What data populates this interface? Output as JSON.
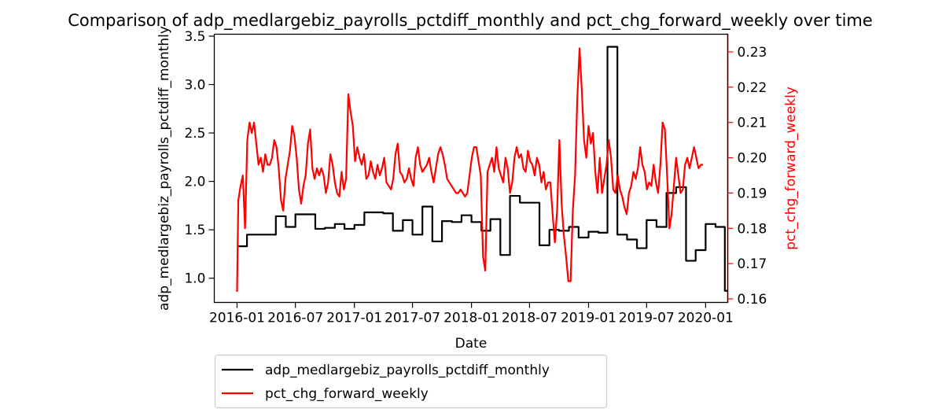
{
  "chart_data": {
    "type": "line",
    "title": "Comparison of adp_medlargebiz_payrolls_pctdiff_monthly and pct_chg_forward_weekly over time",
    "xlabel": "Date",
    "ylabel_left": "adp_medlargebiz_payrolls_pctdiff_monthly",
    "ylabel_right": "pct_chg_forward_weekly",
    "x_ticks": [
      "2016-01",
      "2016-07",
      "2017-01",
      "2017-07",
      "2018-01",
      "2018-07",
      "2019-01",
      "2019-07",
      "2020-01"
    ],
    "y_left_ticks": [
      "1.0",
      "1.5",
      "2.0",
      "2.5",
      "3.0",
      "3.5"
    ],
    "y_right_ticks": [
      "0.16",
      "0.17",
      "0.18",
      "0.19",
      "0.20",
      "0.21",
      "0.22",
      "0.23"
    ],
    "y_left_lim": [
      0.75,
      3.52
    ],
    "y_right_lim": [
      0.159,
      0.235
    ],
    "x_lim": [
      "2015-10-22",
      "2020-03-10"
    ],
    "grid": false,
    "legend_position": "below plot, left",
    "series": [
      {
        "name": "adp_medlargebiz_payrolls_pctdiff_monthly",
        "axis": "left",
        "color": "#000000",
        "step": true,
        "points": [
          [
            "2016-01-01",
            1.33
          ],
          [
            "2016-02-01",
            1.45
          ],
          [
            "2016-03-01",
            1.45
          ],
          [
            "2016-04-01",
            1.45
          ],
          [
            "2016-05-01",
            1.64
          ],
          [
            "2016-06-01",
            1.53
          ],
          [
            "2016-07-01",
            1.66
          ],
          [
            "2016-08-01",
            1.66
          ],
          [
            "2016-09-01",
            1.51
          ],
          [
            "2016-10-01",
            1.52
          ],
          [
            "2016-11-01",
            1.56
          ],
          [
            "2016-12-01",
            1.51
          ],
          [
            "2017-01-01",
            1.55
          ],
          [
            "2017-02-01",
            1.68
          ],
          [
            "2017-03-01",
            1.68
          ],
          [
            "2017-04-01",
            1.67
          ],
          [
            "2017-05-01",
            1.49
          ],
          [
            "2017-06-01",
            1.6
          ],
          [
            "2017-07-01",
            1.45
          ],
          [
            "2017-08-01",
            1.74
          ],
          [
            "2017-09-01",
            1.38
          ],
          [
            "2017-10-01",
            1.59
          ],
          [
            "2017-11-01",
            1.58
          ],
          [
            "2017-12-01",
            1.65
          ],
          [
            "2018-01-01",
            1.58
          ],
          [
            "2018-02-01",
            1.49
          ],
          [
            "2018-03-01",
            1.61
          ],
          [
            "2018-04-01",
            1.24
          ],
          [
            "2018-05-01",
            1.85
          ],
          [
            "2018-06-01",
            1.78
          ],
          [
            "2018-07-01",
            1.78
          ],
          [
            "2018-08-01",
            1.34
          ],
          [
            "2018-09-01",
            1.5
          ],
          [
            "2018-10-01",
            1.49
          ],
          [
            "2018-11-01",
            1.53
          ],
          [
            "2018-12-01",
            1.42
          ],
          [
            "2019-01-01",
            1.48
          ],
          [
            "2019-02-01",
            1.47
          ],
          [
            "2019-03-01",
            3.39
          ],
          [
            "2019-04-01",
            1.45
          ],
          [
            "2019-05-01",
            1.4
          ],
          [
            "2019-06-01",
            1.31
          ],
          [
            "2019-07-01",
            1.6
          ],
          [
            "2019-08-01",
            1.53
          ],
          [
            "2019-09-01",
            1.88
          ],
          [
            "2019-10-01",
            1.94
          ],
          [
            "2019-11-01",
            1.18
          ],
          [
            "2019-12-01",
            1.29
          ],
          [
            "2020-01-01",
            1.56
          ],
          [
            "2020-02-01",
            1.53
          ],
          [
            "2020-03-01",
            0.87
          ],
          [
            "2020-03-10",
            0.87
          ]
        ]
      },
      {
        "name": "pct_chg_forward_weekly",
        "axis": "right",
        "color": "#ff0000",
        "step": false,
        "points": [
          [
            "2016-01-01",
            0.162
          ],
          [
            "2016-01-05",
            0.188
          ],
          [
            "2016-01-12",
            0.192
          ],
          [
            "2016-01-19",
            0.195
          ],
          [
            "2016-01-26",
            0.18
          ],
          [
            "2016-02-02",
            0.205
          ],
          [
            "2016-02-09",
            0.21
          ],
          [
            "2016-02-16",
            0.207
          ],
          [
            "2016-02-23",
            0.21
          ],
          [
            "2016-03-01",
            0.204
          ],
          [
            "2016-03-08",
            0.198
          ],
          [
            "2016-03-15",
            0.2
          ],
          [
            "2016-03-22",
            0.196
          ],
          [
            "2016-03-29",
            0.201
          ],
          [
            "2016-04-05",
            0.198
          ],
          [
            "2016-04-12",
            0.198
          ],
          [
            "2016-04-19",
            0.2
          ],
          [
            "2016-04-26",
            0.205
          ],
          [
            "2016-05-03",
            0.203
          ],
          [
            "2016-05-10",
            0.197
          ],
          [
            "2016-05-17",
            0.188
          ],
          [
            "2016-05-24",
            0.185
          ],
          [
            "2016-05-31",
            0.194
          ],
          [
            "2016-06-07",
            0.198
          ],
          [
            "2016-06-14",
            0.202
          ],
          [
            "2016-06-21",
            0.209
          ],
          [
            "2016-06-28",
            0.206
          ],
          [
            "2016-07-05",
            0.2
          ],
          [
            "2016-07-12",
            0.191
          ],
          [
            "2016-07-19",
            0.187
          ],
          [
            "2016-07-26",
            0.192
          ],
          [
            "2016-08-02",
            0.195
          ],
          [
            "2016-08-09",
            0.204
          ],
          [
            "2016-08-16",
            0.208
          ],
          [
            "2016-08-23",
            0.197
          ],
          [
            "2016-08-30",
            0.194
          ],
          [
            "2016-09-06",
            0.197
          ],
          [
            "2016-09-13",
            0.195
          ],
          [
            "2016-09-20",
            0.197
          ],
          [
            "2016-09-27",
            0.195
          ],
          [
            "2016-10-04",
            0.19
          ],
          [
            "2016-10-11",
            0.193
          ],
          [
            "2016-10-18",
            0.201
          ],
          [
            "2016-10-25",
            0.198
          ],
          [
            "2016-11-01",
            0.193
          ],
          [
            "2016-11-08",
            0.19
          ],
          [
            "2016-11-15",
            0.189
          ],
          [
            "2016-11-22",
            0.196
          ],
          [
            "2016-11-29",
            0.191
          ],
          [
            "2016-12-06",
            0.194
          ],
          [
            "2016-12-13",
            0.218
          ],
          [
            "2016-12-20",
            0.213
          ],
          [
            "2016-12-27",
            0.209
          ],
          [
            "2017-01-03",
            0.199
          ],
          [
            "2017-01-10",
            0.203
          ],
          [
            "2017-01-17",
            0.2
          ],
          [
            "2017-01-24",
            0.198
          ],
          [
            "2017-01-31",
            0.201
          ],
          [
            "2017-02-07",
            0.194
          ],
          [
            "2017-02-14",
            0.195
          ],
          [
            "2017-02-21",
            0.199
          ],
          [
            "2017-02-28",
            0.196
          ],
          [
            "2017-03-07",
            0.194
          ],
          [
            "2017-03-14",
            0.198
          ],
          [
            "2017-03-21",
            0.195
          ],
          [
            "2017-03-28",
            0.197
          ],
          [
            "2017-04-04",
            0.2
          ],
          [
            "2017-04-11",
            0.193
          ],
          [
            "2017-04-18",
            0.192
          ],
          [
            "2017-04-25",
            0.191
          ],
          [
            "2017-05-02",
            0.194
          ],
          [
            "2017-05-09",
            0.201
          ],
          [
            "2017-05-16",
            0.204
          ],
          [
            "2017-05-23",
            0.196
          ],
          [
            "2017-05-30",
            0.195
          ],
          [
            "2017-06-06",
            0.193
          ],
          [
            "2017-06-13",
            0.194
          ],
          [
            "2017-06-20",
            0.197
          ],
          [
            "2017-06-27",
            0.194
          ],
          [
            "2017-07-04",
            0.192
          ],
          [
            "2017-07-11",
            0.2
          ],
          [
            "2017-07-18",
            0.203
          ],
          [
            "2017-07-25",
            0.198
          ],
          [
            "2017-08-01",
            0.196
          ],
          [
            "2017-08-08",
            0.197
          ],
          [
            "2017-08-15",
            0.198
          ],
          [
            "2017-08-22",
            0.2
          ],
          [
            "2017-08-29",
            0.196
          ],
          [
            "2017-09-05",
            0.193
          ],
          [
            "2017-09-12",
            0.197
          ],
          [
            "2017-09-19",
            0.201
          ],
          [
            "2017-09-26",
            0.203
          ],
          [
            "2017-10-03",
            0.201
          ],
          [
            "2017-10-10",
            0.198
          ],
          [
            "2017-10-17",
            0.194
          ],
          [
            "2017-10-24",
            0.193
          ],
          [
            "2017-10-31",
            0.192
          ],
          [
            "2017-11-07",
            0.191
          ],
          [
            "2017-11-14",
            0.19
          ],
          [
            "2017-11-21",
            0.19
          ],
          [
            "2017-11-28",
            0.191
          ],
          [
            "2017-12-05",
            0.19
          ],
          [
            "2017-12-12",
            0.189
          ],
          [
            "2017-12-19",
            0.19
          ],
          [
            "2017-12-26",
            0.195
          ],
          [
            "2018-01-02",
            0.2
          ],
          [
            "2018-01-09",
            0.203
          ],
          [
            "2018-01-16",
            0.203
          ],
          [
            "2018-01-23",
            0.199
          ],
          [
            "2018-01-30",
            0.195
          ],
          [
            "2018-02-06",
            0.172
          ],
          [
            "2018-02-13",
            0.168
          ],
          [
            "2018-02-20",
            0.196
          ],
          [
            "2018-02-27",
            0.198
          ],
          [
            "2018-03-06",
            0.2
          ],
          [
            "2018-03-13",
            0.196
          ],
          [
            "2018-03-20",
            0.203
          ],
          [
            "2018-03-27",
            0.197
          ],
          [
            "2018-04-03",
            0.195
          ],
          [
            "2018-04-10",
            0.193
          ],
          [
            "2018-04-17",
            0.2
          ],
          [
            "2018-04-24",
            0.197
          ],
          [
            "2018-05-01",
            0.19
          ],
          [
            "2018-05-08",
            0.193
          ],
          [
            "2018-05-15",
            0.2
          ],
          [
            "2018-05-22",
            0.203
          ],
          [
            "2018-05-29",
            0.2
          ],
          [
            "2018-06-05",
            0.201
          ],
          [
            "2018-06-12",
            0.197
          ],
          [
            "2018-06-19",
            0.196
          ],
          [
            "2018-06-26",
            0.202
          ],
          [
            "2018-07-03",
            0.199
          ],
          [
            "2018-07-10",
            0.198
          ],
          [
            "2018-07-17",
            0.195
          ],
          [
            "2018-07-24",
            0.2
          ],
          [
            "2018-07-31",
            0.198
          ],
          [
            "2018-08-07",
            0.193
          ],
          [
            "2018-08-14",
            0.196
          ],
          [
            "2018-08-21",
            0.191
          ],
          [
            "2018-08-28",
            0.193
          ],
          [
            "2018-09-04",
            0.193
          ],
          [
            "2018-09-11",
            0.184
          ],
          [
            "2018-09-18",
            0.176
          ],
          [
            "2018-09-25",
            0.185
          ],
          [
            "2018-10-02",
            0.205
          ],
          [
            "2018-10-09",
            0.187
          ],
          [
            "2018-10-16",
            0.178
          ],
          [
            "2018-10-23",
            0.172
          ],
          [
            "2018-10-30",
            0.165
          ],
          [
            "2018-11-06",
            0.165
          ],
          [
            "2018-11-13",
            0.185
          ],
          [
            "2018-11-20",
            0.195
          ],
          [
            "2018-11-27",
            0.217
          ],
          [
            "2018-12-04",
            0.231
          ],
          [
            "2018-12-11",
            0.219
          ],
          [
            "2018-12-18",
            0.205
          ],
          [
            "2018-12-25",
            0.2
          ],
          [
            "2019-01-01",
            0.209
          ],
          [
            "2019-01-08",
            0.204
          ],
          [
            "2019-01-15",
            0.207
          ],
          [
            "2019-01-22",
            0.196
          ],
          [
            "2019-01-29",
            0.19
          ],
          [
            "2019-02-05",
            0.2
          ],
          [
            "2019-02-12",
            0.19
          ],
          [
            "2019-02-19",
            0.194
          ],
          [
            "2019-02-26",
            0.198
          ],
          [
            "2019-03-05",
            0.205
          ],
          [
            "2019-03-12",
            0.2
          ],
          [
            "2019-03-19",
            0.191
          ],
          [
            "2019-03-26",
            0.19
          ],
          [
            "2019-04-02",
            0.195
          ],
          [
            "2019-04-09",
            0.191
          ],
          [
            "2019-04-16",
            0.189
          ],
          [
            "2019-04-23",
            0.186
          ],
          [
            "2019-04-30",
            0.184
          ],
          [
            "2019-05-07",
            0.19
          ],
          [
            "2019-05-14",
            0.192
          ],
          [
            "2019-05-21",
            0.196
          ],
          [
            "2019-05-28",
            0.194
          ],
          [
            "2019-06-04",
            0.197
          ],
          [
            "2019-06-11",
            0.203
          ],
          [
            "2019-06-18",
            0.198
          ],
          [
            "2019-06-25",
            0.196
          ],
          [
            "2019-07-02",
            0.191
          ],
          [
            "2019-07-09",
            0.193
          ],
          [
            "2019-07-16",
            0.192
          ],
          [
            "2019-07-23",
            0.198
          ],
          [
            "2019-07-30",
            0.193
          ],
          [
            "2019-08-06",
            0.19
          ],
          [
            "2019-08-13",
            0.198
          ],
          [
            "2019-08-20",
            0.21
          ],
          [
            "2019-08-27",
            0.208
          ],
          [
            "2019-09-03",
            0.195
          ],
          [
            "2019-09-10",
            0.18
          ],
          [
            "2019-09-17",
            0.184
          ],
          [
            "2019-09-24",
            0.192
          ],
          [
            "2019-10-01",
            0.2
          ],
          [
            "2019-10-08",
            0.195
          ],
          [
            "2019-10-15",
            0.19
          ],
          [
            "2019-10-22",
            0.191
          ],
          [
            "2019-10-29",
            0.198
          ],
          [
            "2019-11-05",
            0.2
          ],
          [
            "2019-11-12",
            0.197
          ],
          [
            "2019-11-19",
            0.2
          ],
          [
            "2019-11-26",
            0.203
          ],
          [
            "2019-12-03",
            0.2
          ],
          [
            "2019-12-10",
            0.197
          ],
          [
            "2019-12-17",
            0.198
          ],
          [
            "2019-12-24",
            0.198
          ]
        ]
      }
    ]
  }
}
